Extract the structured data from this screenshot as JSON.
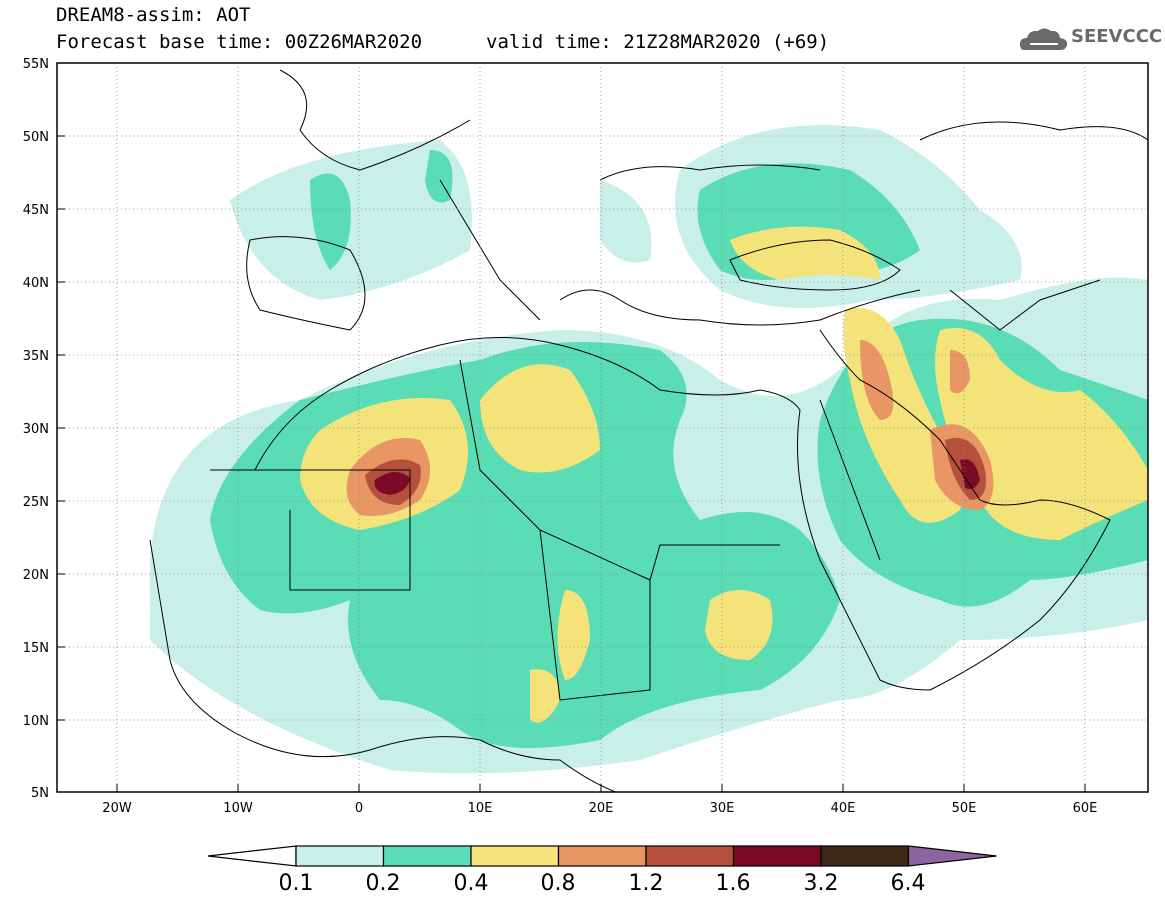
{
  "header": {
    "line1": "DREAM8-assim: AOT",
    "line2": "Forecast base time: 00Z26MAR2020",
    "line3": "valid time: 21Z28MAR2020 (+69)"
  },
  "logo": {
    "text": "SEEVCCC",
    "icon": "cloud-icon"
  },
  "map": {
    "lat_labels": [
      "55N",
      "50N",
      "45N",
      "40N",
      "35N",
      "30N",
      "25N",
      "20N",
      "15N",
      "10N",
      "5N"
    ],
    "lon_labels": [
      "20W",
      "10W",
      "0",
      "10E",
      "20E",
      "30E",
      "40E",
      "50E",
      "60E"
    ],
    "extent": {
      "lon": [
        -25,
        65
      ],
      "lat": [
        5,
        55
      ]
    }
  },
  "colorbar": {
    "labels": [
      "0.1",
      "0.2",
      "0.4",
      "0.8",
      "1.2",
      "1.6",
      "3.2",
      "6.4"
    ],
    "colors": [
      "#ffffff",
      "#c8f0e8",
      "#5adcb4",
      "#f4e37a",
      "#e89664",
      "#b4503c",
      "#7a0a28",
      "#3c2814",
      "#8c64a0"
    ]
  }
}
